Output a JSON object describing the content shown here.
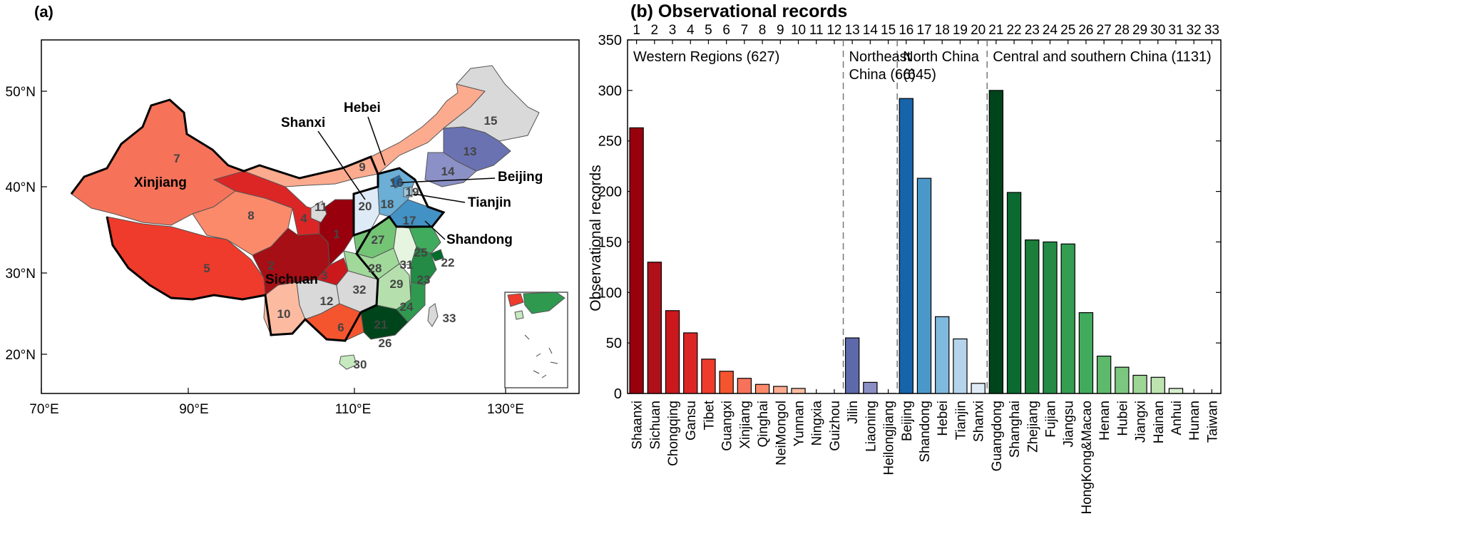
{
  "panel_a": {
    "label": "(a)",
    "lon_ticks": [
      "70°E",
      "90°E",
      "110°E",
      "130°E"
    ],
    "lat_ticks": [
      "50°N",
      "40°N",
      "30°N",
      "20°N"
    ],
    "province_names": [
      "Xinjiang",
      "Sichuan",
      "Shanxi",
      "Hebei",
      "Beijing",
      "Tianjin",
      "Shandong"
    ],
    "region_numbers": [
      {
        "n": "1",
        "color": "#99000d"
      },
      {
        "n": "2",
        "color": "#a50f15"
      },
      {
        "n": "3",
        "color": "#cb181d"
      },
      {
        "n": "4",
        "color": "#cb181d"
      },
      {
        "n": "5",
        "color": "#ef3b2c"
      },
      {
        "n": "6",
        "color": "#f4552f"
      },
      {
        "n": "7",
        "color": "#f6735a"
      },
      {
        "n": "8",
        "color": "#fb8a6a"
      },
      {
        "n": "9",
        "color": "#fcab8f"
      },
      {
        "n": "10",
        "color": "#fcbba1"
      },
      {
        "n": "11",
        "color": "#d9d9d9"
      },
      {
        "n": "12",
        "color": "#d9d9d9"
      },
      {
        "n": "13",
        "color": "#6a72b2"
      },
      {
        "n": "14",
        "color": "#8b91c6"
      },
      {
        "n": "15",
        "color": "#d9d9d9"
      },
      {
        "n": "16",
        "color": "#2171b5"
      },
      {
        "n": "17",
        "color": "#4292c6"
      },
      {
        "n": "18",
        "color": "#6baed6"
      },
      {
        "n": "19",
        "color": "#9ecae1"
      },
      {
        "n": "20",
        "color": "#deebf7"
      },
      {
        "n": "21",
        "color": "#00441b"
      },
      {
        "n": "22",
        "color": "#006d2c"
      },
      {
        "n": "23",
        "color": "#238b45"
      },
      {
        "n": "24",
        "color": "#2f9a4f"
      },
      {
        "n": "25",
        "color": "#41ab5d"
      },
      {
        "n": "26",
        "color": "#41ab5d"
      },
      {
        "n": "27",
        "color": "#74c476"
      },
      {
        "n": "28",
        "color": "#a1d99b"
      },
      {
        "n": "29",
        "color": "#b5e0ad"
      },
      {
        "n": "30",
        "color": "#c7e9c0"
      },
      {
        "n": "31",
        "color": "#e5f5e0"
      },
      {
        "n": "32",
        "color": "#d9d9d9"
      },
      {
        "n": "33",
        "color": "#d9d9d9"
      }
    ]
  },
  "chart_data": {
    "type": "bar",
    "title": "(b) Observational records",
    "ylabel": "Observational records",
    "xlabel": "",
    "ylim": [
      0,
      350
    ],
    "yticks": [
      0,
      50,
      100,
      150,
      200,
      250,
      300,
      350
    ],
    "grid": false,
    "categories": [
      "Shaanxi",
      "Sichuan",
      "Chongqing",
      "Gansu",
      "Tibet",
      "Guangxi",
      "Xinjiang",
      "Qinghai",
      "NeiMongol",
      "Yunnan",
      "Ningxia",
      "Guizhou",
      "Jilin",
      "Liaoning",
      "Heilongjiang",
      "Beijing",
      "Shandong",
      "Hebei",
      "Tianjin",
      "Shanxi",
      "Guangdong",
      "Shanghai",
      "Zhejiang",
      "Fujian",
      "Jiangsu",
      "HongKong&Macao",
      "Henan",
      "Hubei",
      "Jiangxi",
      "Hainan",
      "Anhui",
      "Hunan",
      "Taiwan"
    ],
    "numbers": [
      "1",
      "2",
      "3",
      "4",
      "5",
      "6",
      "7",
      "8",
      "9",
      "10",
      "11",
      "12",
      "13",
      "14",
      "15",
      "16",
      "17",
      "18",
      "19",
      "20",
      "21",
      "22",
      "23",
      "24",
      "25",
      "26",
      "27",
      "28",
      "29",
      "30",
      "31",
      "32",
      "33"
    ],
    "values": [
      263,
      130,
      82,
      60,
      34,
      22,
      15,
      9,
      7,
      5,
      0,
      0,
      55,
      11,
      0,
      292,
      213,
      76,
      54,
      10,
      300,
      199,
      152,
      150,
      148,
      80,
      37,
      26,
      18,
      16,
      5,
      0,
      0
    ],
    "colors": [
      "#99000d",
      "#b0101a",
      "#cb181d",
      "#dc2626",
      "#ef3b2c",
      "#f4552f",
      "#f6735a",
      "#fb8a6a",
      "#fcab8f",
      "#fcbba1",
      "#fdd0bc",
      "#fee0d2",
      "#5e69ab",
      "#8a8fc4",
      "#c4c6e2",
      "#1764ab",
      "#4a98c9",
      "#7fb9dd",
      "#b5d4eb",
      "#deebf7",
      "#00441b",
      "#0b6a30",
      "#1b7f3b",
      "#238b45",
      "#339d52",
      "#41ab5d",
      "#5db96b",
      "#7cc77f",
      "#9dd595",
      "#bde3b0",
      "#d5efcc",
      "#e5f5e0",
      "#f2faee"
    ],
    "groups": [
      {
        "label_lines": [
          "Western Regions (627)"
        ],
        "start": 0,
        "end": 11
      },
      {
        "label_lines": [
          "Northeast",
          "China (66)"
        ],
        "start": 12,
        "end": 14
      },
      {
        "label_lines": [
          "North China",
          "(645)"
        ],
        "start": 15,
        "end": 19
      },
      {
        "label_lines": [
          "Central and southern China (1131)"
        ],
        "start": 20,
        "end": 32
      }
    ]
  }
}
